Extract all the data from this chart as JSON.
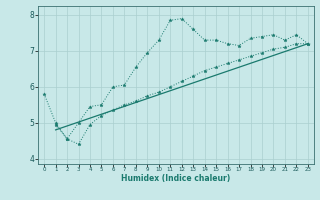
{
  "line1_x": [
    0,
    1,
    2,
    3,
    4,
    5,
    6,
    7,
    8,
    9,
    10,
    11,
    12,
    13,
    14,
    15,
    16,
    17,
    18,
    19,
    20,
    21,
    22,
    23
  ],
  "line1_y": [
    5.8,
    5.0,
    4.55,
    5.0,
    5.45,
    5.5,
    6.0,
    6.05,
    6.55,
    6.95,
    7.3,
    7.85,
    7.9,
    7.6,
    7.3,
    7.3,
    7.2,
    7.15,
    7.35,
    7.4,
    7.45,
    7.3,
    7.45,
    7.2
  ],
  "line2_x": [
    1,
    2,
    3,
    4,
    5,
    6,
    7,
    8,
    9,
    10,
    11,
    12,
    13,
    14,
    15,
    16,
    17,
    18,
    19,
    20,
    21,
    22,
    23
  ],
  "line2_y": [
    4.95,
    4.55,
    4.4,
    4.95,
    5.2,
    5.35,
    5.5,
    5.6,
    5.75,
    5.85,
    6.0,
    6.15,
    6.3,
    6.45,
    6.55,
    6.65,
    6.75,
    6.85,
    6.95,
    7.05,
    7.1,
    7.2,
    7.2
  ],
  "line3_x": [
    1,
    23
  ],
  "line3_y": [
    4.8,
    7.2
  ],
  "color": "#1a7a6e",
  "bg_color": "#c8e8e8",
  "grid_color": "#aacfcf",
  "xlabel": "Humidex (Indice chaleur)",
  "xlim": [
    -0.5,
    23.5
  ],
  "ylim": [
    3.85,
    8.25
  ],
  "yticks": [
    4,
    5,
    6,
    7,
    8
  ],
  "xticks": [
    0,
    1,
    2,
    3,
    4,
    5,
    6,
    7,
    8,
    9,
    10,
    11,
    12,
    13,
    14,
    15,
    16,
    17,
    18,
    19,
    20,
    21,
    22,
    23
  ]
}
